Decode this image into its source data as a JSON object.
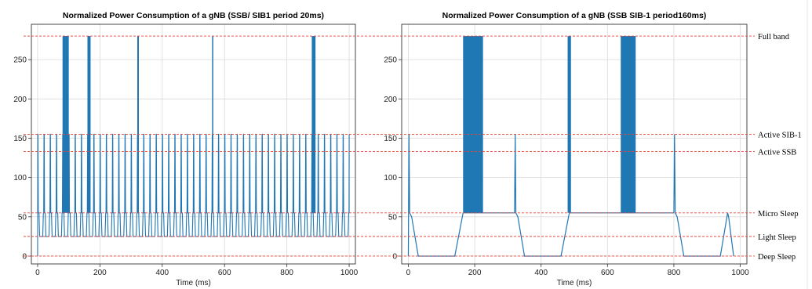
{
  "chart_data": [
    {
      "type": "line",
      "title": "Normalized Power Consumption of a gNB (SSB/ SIB1 period 20ms)",
      "xlabel": "Time (ms)",
      "ylabel": "",
      "xlim": [
        -20,
        1020
      ],
      "ylim": [
        -10,
        295
      ],
      "xticks": [
        0,
        200,
        400,
        600,
        800,
        1000
      ],
      "yticks": [
        0,
        50,
        100,
        150,
        200,
        250
      ],
      "grid": true,
      "series_color": "#1f77b4",
      "periodic_pattern": {
        "period_ms": 20,
        "sib1_peak": 155,
        "micro_sleep": 55,
        "light_sleep": 25,
        "start_ms": 0,
        "end_ms": 1000
      },
      "full_band_bursts": [
        [
          80,
          100
        ],
        [
          160,
          170
        ],
        [
          320,
          325
        ],
        [
          560,
          563
        ],
        [
          880,
          892
        ]
      ],
      "full_band_level": 280
    },
    {
      "type": "line",
      "title": "Normalized Power Consumption of a gNB (SSB SIB-1 period160ms)",
      "xlabel": "Time (ms)",
      "ylabel": "",
      "xlim": [
        -20,
        1020
      ],
      "ylim": [
        -10,
        295
      ],
      "xticks": [
        0,
        200,
        400,
        600,
        800,
        1000
      ],
      "yticks": [
        0,
        50,
        100,
        150,
        200,
        250
      ],
      "grid": true,
      "series_color": "#1f77b4",
      "x": [
        0,
        2,
        4,
        10,
        30,
        140,
        165,
        320,
        322,
        324,
        330,
        350,
        460,
        485,
        800,
        802,
        804,
        810,
        830,
        940,
        962,
        965,
        980
      ],
      "y": [
        0,
        155,
        55,
        50,
        0,
        0,
        55,
        55,
        155,
        55,
        50,
        0,
        0,
        55,
        55,
        155,
        55,
        50,
        0,
        0,
        55,
        50,
        0
      ],
      "full_band_bursts": [
        [
          165,
          225
        ],
        [
          480,
          490
        ],
        [
          640,
          685
        ]
      ],
      "full_band_level": 280
    }
  ],
  "reference_levels": [
    {
      "label": "Full band",
      "value": 280
    },
    {
      "label": "Active SIB-1",
      "value": 155
    },
    {
      "label": "Active SSB",
      "value": 133
    },
    {
      "label": "Micro Sleep",
      "value": 55
    },
    {
      "label": "Light Sleep",
      "value": 25
    },
    {
      "label": "Deep Sleep",
      "value": 0
    }
  ],
  "reference_line_color": "#e8463c"
}
